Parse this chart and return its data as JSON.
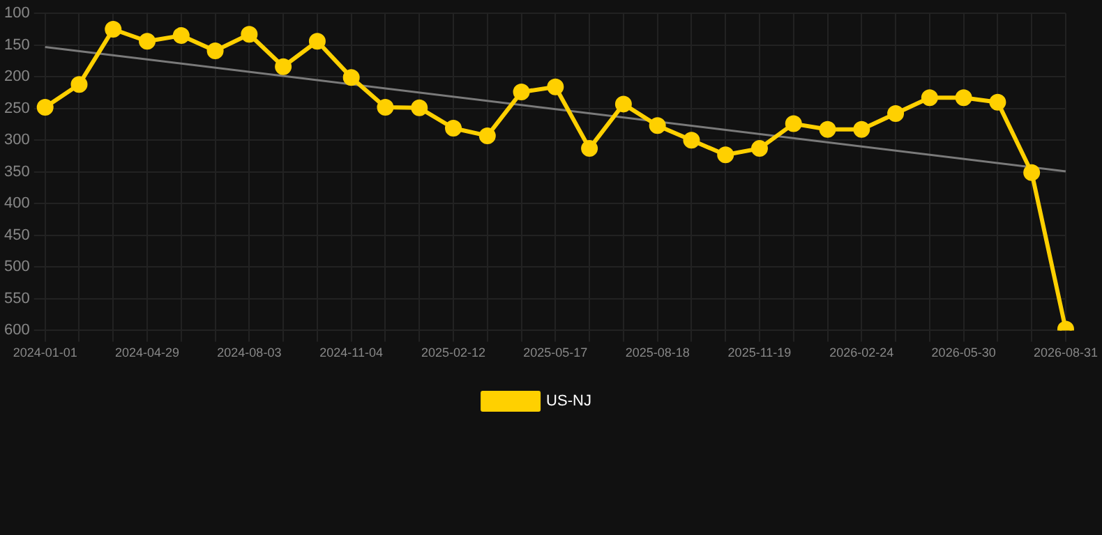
{
  "chart_data": {
    "type": "line",
    "categories": [
      "2024-01-01",
      null,
      null,
      "2024-04-29",
      null,
      null,
      "2024-08-03",
      null,
      null,
      "2024-11-04",
      null,
      null,
      "2025-02-12",
      null,
      null,
      "2025-05-17",
      null,
      null,
      "2025-08-18",
      null,
      null,
      "2025-11-19",
      null,
      null,
      "2026-02-24",
      null,
      null,
      "2026-05-30",
      null,
      null,
      "2026-08-31"
    ],
    "series": [
      {
        "name": "US-NJ",
        "color": "#ffd000",
        "marker": "circle",
        "values": [
          248,
          212,
          125,
          144,
          135,
          159,
          133,
          184,
          144,
          201,
          248,
          249,
          281,
          293,
          224,
          216,
          313,
          243,
          277,
          300,
          323,
          313,
          274,
          283,
          283,
          258,
          233,
          233,
          240,
          351,
          598
        ]
      },
      {
        "type": "line",
        "color": "#7a7a7a",
        "marker": "none",
        "values": [
          153,
          null,
          null,
          null,
          null,
          null,
          null,
          null,
          null,
          null,
          null,
          null,
          null,
          null,
          null,
          null,
          null,
          null,
          null,
          null,
          null,
          null,
          null,
          null,
          null,
          null,
          null,
          null,
          null,
          null,
          349
        ]
      }
    ],
    "ylim": [
      600,
      100
    ],
    "yticks": [
      100,
      150,
      200,
      250,
      300,
      350,
      400,
      450,
      500,
      550,
      600
    ],
    "grid": true,
    "legend": "bottom"
  }
}
